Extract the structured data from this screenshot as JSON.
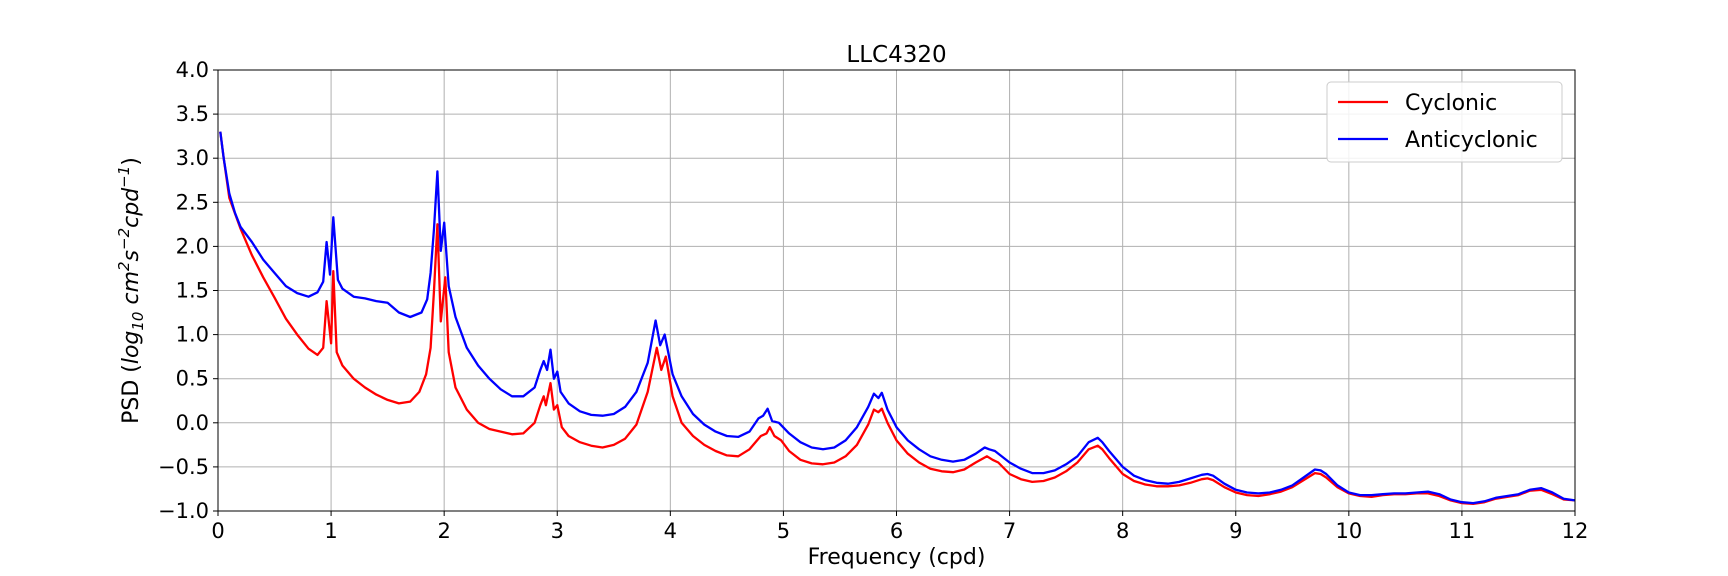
{
  "chart_data": {
    "type": "line",
    "title": "LLC4320",
    "xlabel": "Frequency (cpd)",
    "ylabel": {
      "prefix": "PSD (",
      "base": "log",
      "base_sub": "10",
      "unit1": " cm",
      "sup1": "2",
      "unit2": "s",
      "sup2": "−2",
      "unit3": "cpd",
      "sup3": "−1",
      "suffix": ")"
    },
    "xlim": [
      0,
      12
    ],
    "ylim": [
      -1.0,
      4.0
    ],
    "xticks": [
      0,
      1,
      2,
      3,
      4,
      5,
      6,
      7,
      8,
      9,
      10,
      11,
      12
    ],
    "xtick_labels": [
      "0",
      "1",
      "2",
      "3",
      "4",
      "5",
      "6",
      "7",
      "8",
      "9",
      "10",
      "11",
      "12"
    ],
    "yticks": [
      -1.0,
      -0.5,
      0.0,
      0.5,
      1.0,
      1.5,
      2.0,
      2.5,
      3.0,
      3.5,
      4.0
    ],
    "ytick_labels": [
      "−1.0",
      "−0.5",
      "0.0",
      "0.5",
      "1.0",
      "1.5",
      "2.0",
      "2.5",
      "3.0",
      "3.5",
      "4.0"
    ],
    "grid": true,
    "legend_position": "top-right",
    "series": [
      {
        "name": "Cyclonic",
        "color": "#ff0000",
        "points": [
          [
            0.02,
            3.3
          ],
          [
            0.05,
            3.0
          ],
          [
            0.1,
            2.55
          ],
          [
            0.2,
            2.2
          ],
          [
            0.3,
            1.9
          ],
          [
            0.4,
            1.65
          ],
          [
            0.5,
            1.42
          ],
          [
            0.6,
            1.18
          ],
          [
            0.7,
            1.0
          ],
          [
            0.8,
            0.84
          ],
          [
            0.88,
            0.77
          ],
          [
            0.93,
            0.85
          ],
          [
            0.96,
            1.38
          ],
          [
            1.0,
            0.9
          ],
          [
            1.02,
            1.72
          ],
          [
            1.05,
            0.8
          ],
          [
            1.1,
            0.65
          ],
          [
            1.2,
            0.5
          ],
          [
            1.3,
            0.4
          ],
          [
            1.4,
            0.32
          ],
          [
            1.5,
            0.26
          ],
          [
            1.6,
            0.22
          ],
          [
            1.7,
            0.24
          ],
          [
            1.78,
            0.35
          ],
          [
            1.84,
            0.55
          ],
          [
            1.88,
            0.85
          ],
          [
            1.91,
            1.5
          ],
          [
            1.94,
            2.25
          ],
          [
            1.97,
            1.15
          ],
          [
            2.01,
            1.65
          ],
          [
            2.04,
            0.8
          ],
          [
            2.1,
            0.4
          ],
          [
            2.2,
            0.15
          ],
          [
            2.3,
            0.0
          ],
          [
            2.4,
            -0.07
          ],
          [
            2.5,
            -0.1
          ],
          [
            2.6,
            -0.13
          ],
          [
            2.7,
            -0.12
          ],
          [
            2.8,
            0.0
          ],
          [
            2.85,
            0.2
          ],
          [
            2.88,
            0.3
          ],
          [
            2.9,
            0.2
          ],
          [
            2.94,
            0.45
          ],
          [
            2.97,
            0.15
          ],
          [
            3.0,
            0.2
          ],
          [
            3.04,
            -0.05
          ],
          [
            3.1,
            -0.15
          ],
          [
            3.2,
            -0.22
          ],
          [
            3.3,
            -0.26
          ],
          [
            3.4,
            -0.28
          ],
          [
            3.5,
            -0.25
          ],
          [
            3.6,
            -0.18
          ],
          [
            3.7,
            -0.02
          ],
          [
            3.8,
            0.35
          ],
          [
            3.88,
            0.85
          ],
          [
            3.92,
            0.6
          ],
          [
            3.96,
            0.75
          ],
          [
            4.02,
            0.3
          ],
          [
            4.1,
            0.0
          ],
          [
            4.2,
            -0.15
          ],
          [
            4.3,
            -0.25
          ],
          [
            4.4,
            -0.32
          ],
          [
            4.5,
            -0.37
          ],
          [
            4.6,
            -0.38
          ],
          [
            4.7,
            -0.3
          ],
          [
            4.8,
            -0.15
          ],
          [
            4.85,
            -0.12
          ],
          [
            4.88,
            -0.05
          ],
          [
            4.92,
            -0.15
          ],
          [
            4.98,
            -0.2
          ],
          [
            5.05,
            -0.32
          ],
          [
            5.15,
            -0.42
          ],
          [
            5.25,
            -0.46
          ],
          [
            5.35,
            -0.47
          ],
          [
            5.45,
            -0.45
          ],
          [
            5.55,
            -0.38
          ],
          [
            5.65,
            -0.25
          ],
          [
            5.75,
            -0.02
          ],
          [
            5.8,
            0.15
          ],
          [
            5.84,
            0.12
          ],
          [
            5.87,
            0.16
          ],
          [
            5.92,
            0.0
          ],
          [
            6.0,
            -0.2
          ],
          [
            6.1,
            -0.35
          ],
          [
            6.2,
            -0.45
          ],
          [
            6.3,
            -0.52
          ],
          [
            6.4,
            -0.55
          ],
          [
            6.5,
            -0.56
          ],
          [
            6.6,
            -0.53
          ],
          [
            6.7,
            -0.45
          ],
          [
            6.8,
            -0.38
          ],
          [
            6.85,
            -0.42
          ],
          [
            6.9,
            -0.45
          ],
          [
            7.0,
            -0.58
          ],
          [
            7.1,
            -0.64
          ],
          [
            7.2,
            -0.67
          ],
          [
            7.3,
            -0.66
          ],
          [
            7.4,
            -0.62
          ],
          [
            7.5,
            -0.55
          ],
          [
            7.6,
            -0.45
          ],
          [
            7.7,
            -0.3
          ],
          [
            7.78,
            -0.26
          ],
          [
            7.82,
            -0.3
          ],
          [
            7.88,
            -0.4
          ],
          [
            8.0,
            -0.58
          ],
          [
            8.1,
            -0.66
          ],
          [
            8.2,
            -0.7
          ],
          [
            8.3,
            -0.72
          ],
          [
            8.4,
            -0.72
          ],
          [
            8.5,
            -0.71
          ],
          [
            8.6,
            -0.68
          ],
          [
            8.7,
            -0.64
          ],
          [
            8.75,
            -0.63
          ],
          [
            8.8,
            -0.65
          ],
          [
            8.9,
            -0.73
          ],
          [
            9.0,
            -0.79
          ],
          [
            9.1,
            -0.82
          ],
          [
            9.2,
            -0.83
          ],
          [
            9.3,
            -0.81
          ],
          [
            9.4,
            -0.78
          ],
          [
            9.5,
            -0.73
          ],
          [
            9.6,
            -0.65
          ],
          [
            9.7,
            -0.57
          ],
          [
            9.75,
            -0.58
          ],
          [
            9.8,
            -0.62
          ],
          [
            9.9,
            -0.73
          ],
          [
            10.0,
            -0.8
          ],
          [
            10.1,
            -0.83
          ],
          [
            10.2,
            -0.84
          ],
          [
            10.3,
            -0.82
          ],
          [
            10.4,
            -0.81
          ],
          [
            10.5,
            -0.81
          ],
          [
            10.6,
            -0.8
          ],
          [
            10.7,
            -0.8
          ],
          [
            10.8,
            -0.83
          ],
          [
            10.9,
            -0.88
          ],
          [
            11.0,
            -0.91
          ],
          [
            11.1,
            -0.92
          ],
          [
            11.2,
            -0.9
          ],
          [
            11.3,
            -0.86
          ],
          [
            11.4,
            -0.84
          ],
          [
            11.5,
            -0.82
          ],
          [
            11.6,
            -0.77
          ],
          [
            11.7,
            -0.76
          ],
          [
            11.8,
            -0.81
          ],
          [
            11.9,
            -0.87
          ],
          [
            12.0,
            -0.88
          ]
        ]
      },
      {
        "name": "Anticyclonic",
        "color": "#0000ff",
        "points": [
          [
            0.02,
            3.3
          ],
          [
            0.05,
            3.0
          ],
          [
            0.1,
            2.6
          ],
          [
            0.15,
            2.38
          ],
          [
            0.2,
            2.22
          ],
          [
            0.3,
            2.05
          ],
          [
            0.4,
            1.85
          ],
          [
            0.5,
            1.7
          ],
          [
            0.6,
            1.55
          ],
          [
            0.7,
            1.47
          ],
          [
            0.8,
            1.43
          ],
          [
            0.88,
            1.48
          ],
          [
            0.93,
            1.6
          ],
          [
            0.96,
            2.05
          ],
          [
            0.99,
            1.68
          ],
          [
            1.02,
            2.33
          ],
          [
            1.06,
            1.62
          ],
          [
            1.1,
            1.52
          ],
          [
            1.2,
            1.43
          ],
          [
            1.3,
            1.41
          ],
          [
            1.4,
            1.38
          ],
          [
            1.5,
            1.36
          ],
          [
            1.6,
            1.25
          ],
          [
            1.7,
            1.2
          ],
          [
            1.8,
            1.25
          ],
          [
            1.85,
            1.4
          ],
          [
            1.88,
            1.7
          ],
          [
            1.91,
            2.2
          ],
          [
            1.94,
            2.85
          ],
          [
            1.97,
            1.95
          ],
          [
            2.0,
            2.27
          ],
          [
            2.04,
            1.55
          ],
          [
            2.1,
            1.2
          ],
          [
            2.2,
            0.85
          ],
          [
            2.3,
            0.65
          ],
          [
            2.4,
            0.5
          ],
          [
            2.5,
            0.38
          ],
          [
            2.6,
            0.3
          ],
          [
            2.7,
            0.3
          ],
          [
            2.8,
            0.4
          ],
          [
            2.85,
            0.6
          ],
          [
            2.88,
            0.7
          ],
          [
            2.91,
            0.6
          ],
          [
            2.94,
            0.83
          ],
          [
            2.97,
            0.5
          ],
          [
            3.0,
            0.58
          ],
          [
            3.03,
            0.35
          ],
          [
            3.1,
            0.22
          ],
          [
            3.2,
            0.13
          ],
          [
            3.3,
            0.09
          ],
          [
            3.4,
            0.08
          ],
          [
            3.5,
            0.1
          ],
          [
            3.6,
            0.18
          ],
          [
            3.7,
            0.35
          ],
          [
            3.8,
            0.68
          ],
          [
            3.87,
            1.16
          ],
          [
            3.91,
            0.88
          ],
          [
            3.95,
            1.0
          ],
          [
            4.02,
            0.55
          ],
          [
            4.1,
            0.3
          ],
          [
            4.2,
            0.1
          ],
          [
            4.3,
            -0.02
          ],
          [
            4.4,
            -0.1
          ],
          [
            4.5,
            -0.15
          ],
          [
            4.6,
            -0.16
          ],
          [
            4.7,
            -0.1
          ],
          [
            4.78,
            0.05
          ],
          [
            4.82,
            0.08
          ],
          [
            4.86,
            0.16
          ],
          [
            4.9,
            0.02
          ],
          [
            4.96,
            0.0
          ],
          [
            5.05,
            -0.12
          ],
          [
            5.15,
            -0.22
          ],
          [
            5.25,
            -0.28
          ],
          [
            5.35,
            -0.3
          ],
          [
            5.45,
            -0.28
          ],
          [
            5.55,
            -0.2
          ],
          [
            5.65,
            -0.05
          ],
          [
            5.75,
            0.18
          ],
          [
            5.8,
            0.33
          ],
          [
            5.84,
            0.28
          ],
          [
            5.87,
            0.34
          ],
          [
            5.92,
            0.15
          ],
          [
            6.0,
            -0.05
          ],
          [
            6.1,
            -0.2
          ],
          [
            6.2,
            -0.3
          ],
          [
            6.3,
            -0.38
          ],
          [
            6.4,
            -0.42
          ],
          [
            6.5,
            -0.44
          ],
          [
            6.6,
            -0.42
          ],
          [
            6.7,
            -0.35
          ],
          [
            6.78,
            -0.28
          ],
          [
            6.82,
            -0.3
          ],
          [
            6.87,
            -0.32
          ],
          [
            7.0,
            -0.45
          ],
          [
            7.1,
            -0.52
          ],
          [
            7.2,
            -0.57
          ],
          [
            7.3,
            -0.57
          ],
          [
            7.4,
            -0.54
          ],
          [
            7.5,
            -0.47
          ],
          [
            7.6,
            -0.38
          ],
          [
            7.7,
            -0.22
          ],
          [
            7.78,
            -0.17
          ],
          [
            7.82,
            -0.22
          ],
          [
            7.88,
            -0.32
          ],
          [
            8.0,
            -0.5
          ],
          [
            8.1,
            -0.6
          ],
          [
            8.2,
            -0.65
          ],
          [
            8.3,
            -0.68
          ],
          [
            8.4,
            -0.69
          ],
          [
            8.5,
            -0.67
          ],
          [
            8.6,
            -0.63
          ],
          [
            8.7,
            -0.59
          ],
          [
            8.75,
            -0.58
          ],
          [
            8.8,
            -0.6
          ],
          [
            8.9,
            -0.69
          ],
          [
            9.0,
            -0.76
          ],
          [
            9.1,
            -0.79
          ],
          [
            9.2,
            -0.8
          ],
          [
            9.3,
            -0.79
          ],
          [
            9.4,
            -0.76
          ],
          [
            9.5,
            -0.71
          ],
          [
            9.6,
            -0.62
          ],
          [
            9.7,
            -0.53
          ],
          [
            9.75,
            -0.54
          ],
          [
            9.8,
            -0.58
          ],
          [
            9.9,
            -0.71
          ],
          [
            10.0,
            -0.79
          ],
          [
            10.1,
            -0.82
          ],
          [
            10.2,
            -0.82
          ],
          [
            10.3,
            -0.81
          ],
          [
            10.4,
            -0.8
          ],
          [
            10.5,
            -0.8
          ],
          [
            10.6,
            -0.79
          ],
          [
            10.7,
            -0.78
          ],
          [
            10.8,
            -0.81
          ],
          [
            10.9,
            -0.87
          ],
          [
            11.0,
            -0.9
          ],
          [
            11.1,
            -0.91
          ],
          [
            11.2,
            -0.89
          ],
          [
            11.3,
            -0.85
          ],
          [
            11.4,
            -0.83
          ],
          [
            11.5,
            -0.81
          ],
          [
            11.6,
            -0.76
          ],
          [
            11.7,
            -0.74
          ],
          [
            11.8,
            -0.79
          ],
          [
            11.9,
            -0.86
          ],
          [
            12.0,
            -0.88
          ]
        ]
      }
    ]
  }
}
